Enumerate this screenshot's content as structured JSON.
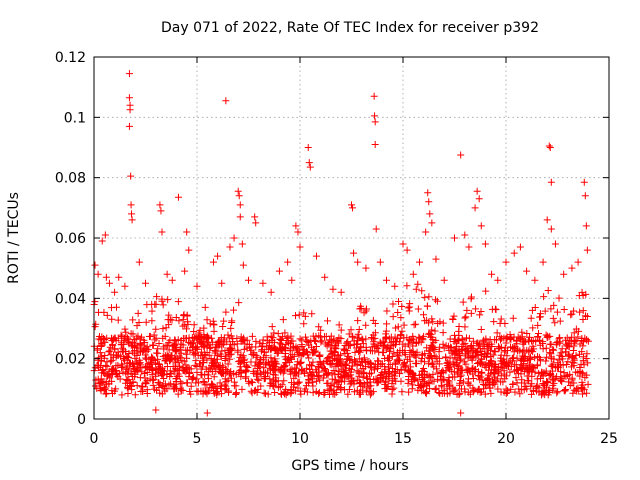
{
  "chart_data": {
    "type": "scatter",
    "title": "Day 071 of 2022, Rate Of TEC Index for receiver p392",
    "xlabel": "GPS time / hours",
    "ylabel": "ROTI / TECUs",
    "xlim": [
      0,
      25
    ],
    "ylim": [
      0,
      0.12
    ],
    "x_ticks": [
      0,
      5,
      10,
      15,
      20,
      25
    ],
    "x_tick_labels": [
      "0",
      "5",
      "10",
      "15",
      "20",
      "25"
    ],
    "y_ticks": [
      0,
      0.02,
      0.04,
      0.06,
      0.08,
      0.1,
      0.12
    ],
    "y_tick_labels": [
      "0",
      "0.02",
      "0.04",
      "0.06",
      "0.08",
      "0.1",
      "0.12"
    ],
    "grid": true,
    "marker": "+",
    "marker_color": "#ff0000",
    "data_range_x": [
      0,
      24
    ],
    "series": [
      {
        "name": "ROTI",
        "points": [
          [
            0.05,
            0.051
          ],
          [
            0.2,
            0.048
          ],
          [
            0.4,
            0.059
          ],
          [
            0.55,
            0.061
          ],
          [
            0.6,
            0.047
          ],
          [
            0.75,
            0.045
          ],
          [
            1.0,
            0.042
          ],
          [
            1.2,
            0.047
          ],
          [
            1.5,
            0.044
          ],
          [
            1.72,
            0.1145
          ],
          [
            1.72,
            0.1065
          ],
          [
            1.75,
            0.104
          ],
          [
            1.75,
            0.1025
          ],
          [
            1.72,
            0.097
          ],
          [
            1.78,
            0.0805
          ],
          [
            1.8,
            0.071
          ],
          [
            1.82,
            0.068
          ],
          [
            1.85,
            0.066
          ],
          [
            2.2,
            0.052
          ],
          [
            2.5,
            0.045
          ],
          [
            2.8,
            0.038
          ],
          [
            3.2,
            0.071
          ],
          [
            3.25,
            0.069
          ],
          [
            3.3,
            0.062
          ],
          [
            3.55,
            0.048
          ],
          [
            3.8,
            0.046
          ],
          [
            4.1,
            0.0735
          ],
          [
            4.4,
            0.049
          ],
          [
            4.5,
            0.062
          ],
          [
            4.6,
            0.056
          ],
          [
            5.0,
            0.044
          ],
          [
            5.4,
            0.037
          ],
          [
            5.8,
            0.052
          ],
          [
            6.0,
            0.054
          ],
          [
            6.2,
            0.045
          ],
          [
            6.4,
            0.1055
          ],
          [
            6.6,
            0.057
          ],
          [
            6.8,
            0.06
          ],
          [
            7.0,
            0.0755
          ],
          [
            7.05,
            0.074
          ],
          [
            7.1,
            0.071
          ],
          [
            7.1,
            0.067
          ],
          [
            7.2,
            0.058
          ],
          [
            7.25,
            0.051
          ],
          [
            7.5,
            0.046
          ],
          [
            7.8,
            0.067
          ],
          [
            7.85,
            0.065
          ],
          [
            8.2,
            0.045
          ],
          [
            8.6,
            0.042
          ],
          [
            9.0,
            0.049
          ],
          [
            9.4,
            0.052
          ],
          [
            9.6,
            0.046
          ],
          [
            9.8,
            0.064
          ],
          [
            9.9,
            0.062
          ],
          [
            10.0,
            0.057
          ],
          [
            10.4,
            0.09
          ],
          [
            10.45,
            0.085
          ],
          [
            10.5,
            0.0835
          ],
          [
            10.8,
            0.054
          ],
          [
            11.2,
            0.047
          ],
          [
            11.6,
            0.043
          ],
          [
            12.0,
            0.042
          ],
          [
            12.5,
            0.071
          ],
          [
            12.55,
            0.07
          ],
          [
            12.6,
            0.055
          ],
          [
            12.8,
            0.052
          ],
          [
            13.2,
            0.05
          ],
          [
            13.6,
            0.107
          ],
          [
            13.62,
            0.1005
          ],
          [
            13.65,
            0.0985
          ],
          [
            13.65,
            0.091
          ],
          [
            13.7,
            0.063
          ],
          [
            13.9,
            0.052
          ],
          [
            14.2,
            0.046
          ],
          [
            14.6,
            0.044
          ],
          [
            15.0,
            0.058
          ],
          [
            15.2,
            0.056
          ],
          [
            15.5,
            0.048
          ],
          [
            15.8,
            0.052
          ],
          [
            16.1,
            0.062
          ],
          [
            16.2,
            0.075
          ],
          [
            16.25,
            0.072
          ],
          [
            16.3,
            0.068
          ],
          [
            16.4,
            0.065
          ],
          [
            16.6,
            0.053
          ],
          [
            17.0,
            0.046
          ],
          [
            17.5,
            0.06
          ],
          [
            17.8,
            0.0875
          ],
          [
            18.0,
            0.061
          ],
          [
            18.2,
            0.057
          ],
          [
            18.5,
            0.07
          ],
          [
            18.6,
            0.0755
          ],
          [
            18.7,
            0.073
          ],
          [
            18.8,
            0.064
          ],
          [
            19.0,
            0.058
          ],
          [
            19.3,
            0.048
          ],
          [
            19.6,
            0.046
          ],
          [
            20.0,
            0.052
          ],
          [
            20.4,
            0.055
          ],
          [
            20.7,
            0.057
          ],
          [
            21.0,
            0.049
          ],
          [
            21.4,
            0.046
          ],
          [
            21.8,
            0.052
          ],
          [
            22.0,
            0.066
          ],
          [
            22.1,
            0.0905
          ],
          [
            22.15,
            0.09
          ],
          [
            22.2,
            0.0785
          ],
          [
            22.2,
            0.063
          ],
          [
            22.4,
            0.058
          ],
          [
            22.8,
            0.048
          ],
          [
            23.2,
            0.05
          ],
          [
            23.5,
            0.052
          ],
          [
            23.8,
            0.0785
          ],
          [
            23.85,
            0.074
          ],
          [
            23.9,
            0.064
          ],
          [
            23.95,
            0.056
          ],
          [
            17.8,
            0.002
          ],
          [
            5.5,
            0.002
          ],
          [
            3.0,
            0.003
          ]
        ],
        "background_band": {
          "description": "dense cluster of ROTI samples across the full day",
          "x_range": [
            0,
            24
          ],
          "typical_y_range": [
            0.004,
            0.03
          ],
          "peak_envelope": [
            [
              0,
              0.04
            ],
            [
              1,
              0.038
            ],
            [
              2,
              0.036
            ],
            [
              3,
              0.042
            ],
            [
              4,
              0.04
            ],
            [
              5,
              0.03
            ],
            [
              6,
              0.036
            ],
            [
              7,
              0.04
            ],
            [
              8,
              0.03
            ],
            [
              9,
              0.032
            ],
            [
              10,
              0.04
            ],
            [
              11,
              0.036
            ],
            [
              12,
              0.032
            ],
            [
              13,
              0.038
            ],
            [
              14,
              0.036
            ],
            [
              15,
              0.044
            ],
            [
              16,
              0.046
            ],
            [
              17,
              0.036
            ],
            [
              18,
              0.04
            ],
            [
              19,
              0.044
            ],
            [
              20,
              0.032
            ],
            [
              21,
              0.036
            ],
            [
              22,
              0.044
            ],
            [
              23,
              0.04
            ],
            [
              24,
              0.046
            ]
          ]
        }
      }
    ]
  }
}
